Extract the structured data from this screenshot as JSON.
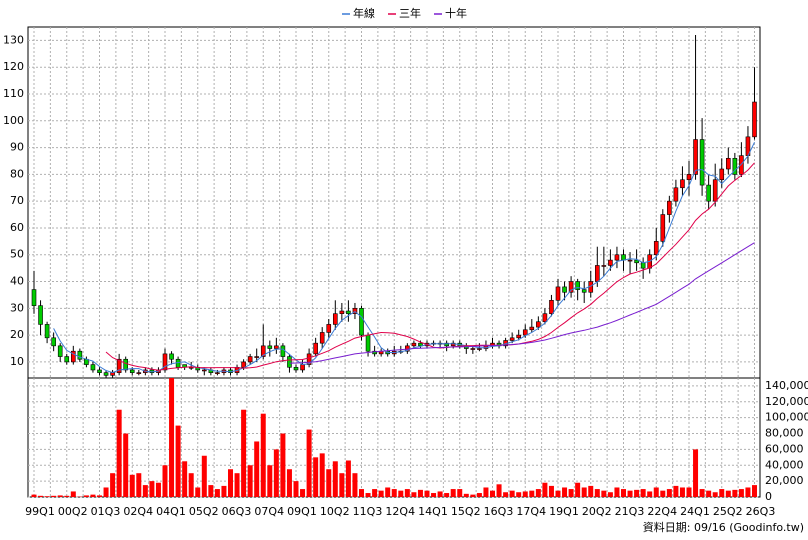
{
  "chart_data": {
    "type": "candlestick",
    "footer": "資料日期: 09/16 (Goodinfo.tw)",
    "categories": [
      "99Q1",
      null,
      null,
      null,
      null,
      "00Q2",
      null,
      null,
      null,
      null,
      "01Q3",
      null,
      null,
      null,
      null,
      "02Q4",
      null,
      null,
      null,
      null,
      "04Q1",
      null,
      null,
      null,
      null,
      "05Q2",
      null,
      null,
      null,
      null,
      "06Q3",
      null,
      null,
      null,
      null,
      "07Q4",
      null,
      null,
      null,
      null,
      "09Q1",
      null,
      null,
      null,
      null,
      "10Q2",
      null,
      null,
      null,
      null,
      "11Q3",
      null,
      null,
      null,
      null,
      "12Q4",
      null,
      null,
      null,
      null,
      "14Q1",
      null,
      null,
      null,
      null,
      "15Q2",
      null,
      null,
      null,
      null,
      "16Q3",
      null,
      null,
      null,
      null,
      "17Q4",
      null,
      null,
      null,
      null,
      "19Q1",
      null,
      null,
      null,
      null,
      "20Q2",
      null,
      null,
      null,
      null,
      "21Q3",
      null,
      null,
      null,
      null,
      "22Q4",
      null,
      null,
      null,
      null,
      "24Q1",
      null,
      null,
      null,
      null,
      "25Q2",
      null,
      null,
      null,
      null,
      "26Q3"
    ],
    "open": [
      37,
      31,
      24,
      19,
      16,
      12,
      10,
      14,
      11,
      9,
      7,
      6,
      5,
      6,
      11,
      7,
      6,
      6,
      7,
      6,
      7,
      13,
      11,
      9,
      8,
      8,
      7,
      7,
      6,
      6,
      7,
      6,
      8,
      10,
      12,
      12,
      16,
      15,
      16,
      12,
      8,
      7,
      9,
      13,
      17,
      21,
      24,
      28,
      29,
      28,
      30,
      20,
      14,
      13,
      14,
      13,
      14,
      14,
      16,
      17,
      16,
      17,
      17,
      17,
      16,
      17,
      16,
      15,
      15,
      15,
      16,
      17,
      16,
      18,
      19,
      20,
      22,
      23,
      25,
      28,
      33,
      38,
      36,
      40,
      37,
      36,
      40,
      46,
      46,
      48,
      50,
      48,
      48,
      47,
      45,
      50,
      55,
      65,
      70,
      75,
      78,
      80,
      93,
      76,
      70,
      78,
      82,
      86,
      80,
      87,
      94
    ],
    "high": [
      44,
      33,
      25,
      21,
      17,
      13,
      16,
      15,
      12,
      10,
      8,
      7,
      7,
      13,
      12,
      8,
      7,
      8,
      8,
      8,
      15,
      14,
      12,
      9,
      10,
      9,
      8,
      8,
      7,
      8,
      8,
      9,
      11,
      13,
      15,
      24,
      18,
      19,
      17,
      13,
      9,
      11,
      15,
      19,
      23,
      26,
      33,
      32,
      33,
      32,
      31,
      21,
      16,
      15,
      15,
      16,
      16,
      17,
      18,
      18,
      18,
      18,
      18,
      18,
      18,
      18,
      17,
      16,
      17,
      18,
      19,
      18,
      19,
      21,
      22,
      24,
      26,
      27,
      30,
      35,
      41,
      40,
      42,
      41,
      40,
      44,
      53,
      53,
      52,
      53,
      52,
      51,
      52,
      49,
      52,
      60,
      67,
      72,
      78,
      83,
      85,
      132,
      101,
      80,
      84,
      86,
      90,
      88,
      92,
      98,
      120
    ],
    "low": [
      28,
      20,
      17,
      14,
      10,
      9,
      9,
      10,
      8,
      6,
      5,
      4,
      4,
      5,
      6,
      5,
      5,
      5,
      5,
      5,
      6,
      9,
      7,
      7,
      7,
      6,
      5,
      5,
      5,
      5,
      5,
      5,
      7,
      9,
      10,
      11,
      12,
      13,
      10,
      6,
      6,
      6,
      8,
      12,
      15,
      19,
      22,
      25,
      25,
      26,
      18,
      12,
      12,
      12,
      12,
      12,
      13,
      13,
      15,
      15,
      15,
      16,
      15,
      14,
      15,
      15,
      13,
      13,
      14,
      14,
      15,
      15,
      15,
      17,
      18,
      19,
      21,
      22,
      24,
      27,
      31,
      33,
      34,
      33,
      32,
      34,
      38,
      42,
      44,
      45,
      44,
      43,
      44,
      41,
      43,
      48,
      53,
      62,
      68,
      72,
      72,
      78,
      72,
      67,
      68,
      75,
      80,
      78,
      79,
      84,
      93
    ],
    "close": [
      31,
      24,
      19,
      16,
      12,
      10,
      14,
      11,
      9,
      7,
      6,
      5,
      6,
      11,
      7,
      6,
      6,
      7,
      6,
      7,
      13,
      11,
      8,
      8,
      8,
      7,
      7,
      6,
      6,
      7,
      6,
      8,
      10,
      12,
      12,
      16,
      15,
      16,
      12,
      8,
      7,
      9,
      13,
      17,
      21,
      24,
      28,
      29,
      28,
      30,
      20,
      14,
      13,
      14,
      13,
      14,
      14,
      16,
      17,
      16,
      17,
      17,
      17,
      16,
      17,
      16,
      15,
      15,
      15,
      16,
      17,
      16,
      18,
      19,
      20,
      22,
      23,
      25,
      28,
      33,
      38,
      36,
      40,
      37,
      36,
      40,
      46,
      46,
      48,
      50,
      48,
      48,
      47,
      45,
      50,
      55,
      65,
      70,
      75,
      78,
      80,
      93,
      76,
      70,
      78,
      82,
      86,
      80,
      87,
      94,
      107
    ],
    "volume": [
      3000,
      1500,
      1000,
      1500,
      2000,
      1500,
      7000,
      500,
      2000,
      3000,
      2000,
      12000,
      30000,
      110000,
      80000,
      28000,
      30000,
      15000,
      20000,
      18000,
      40000,
      150000,
      90000,
      45000,
      30000,
      12000,
      52000,
      15000,
      10000,
      14000,
      35000,
      30000,
      110000,
      40000,
      70000,
      105000,
      40000,
      60000,
      80000,
      35000,
      20000,
      10000,
      85000,
      50000,
      55000,
      35000,
      45000,
      30000,
      46000,
      30000,
      10000,
      5000,
      10000,
      8000,
      12000,
      10000,
      8000,
      10000,
      6000,
      9000,
      8000,
      5000,
      7000,
      5000,
      10000,
      10000,
      4000,
      3000,
      5000,
      12000,
      8000,
      16000,
      6000,
      8000,
      6000,
      7000,
      8000,
      10000,
      18000,
      14000,
      8000,
      12000,
      10000,
      18000,
      12000,
      14000,
      10000,
      8000,
      6000,
      12000,
      10000,
      8000,
      9000,
      10000,
      7000,
      12000,
      8000,
      10000,
      14000,
      12000,
      12000,
      60000,
      10000,
      8000,
      6000,
      10000,
      8000,
      9000,
      10000,
      12000,
      15000
    ],
    "up_color": "#ff0000",
    "down_color": "#00cc00",
    "volume_color": "#ff0000",
    "series": [
      {
        "name": "年線",
        "color": "#3a7bd5",
        "values": [
          null,
          null,
          null,
          22.5,
          17.8,
          14.3,
          13,
          11.8,
          11,
          10.3,
          8.3,
          6.8,
          6,
          7,
          7.3,
          7.5,
          7.5,
          6.5,
          6.3,
          6.5,
          8.3,
          9.3,
          9.8,
          10,
          8.8,
          7.8,
          7.5,
          7,
          6.5,
          6.5,
          6.3,
          6.8,
          7.8,
          9,
          10.5,
          12.5,
          13.8,
          14.8,
          14.8,
          12.8,
          10.8,
          9,
          9.3,
          11.5,
          15,
          18.8,
          22.5,
          25.5,
          27.3,
          28.8,
          26.8,
          23,
          19.3,
          15.3,
          13.5,
          13.5,
          13.8,
          14.3,
          15.3,
          15.8,
          16.5,
          16.8,
          16.8,
          16.8,
          16.8,
          16.5,
          16,
          15.8,
          15.3,
          15.3,
          15.8,
          16,
          16.8,
          17.5,
          18.3,
          19.8,
          21,
          22.5,
          24.5,
          27.3,
          31,
          33.8,
          36.8,
          37.8,
          37.3,
          38.3,
          39.8,
          42,
          45,
          47.5,
          48,
          48.5,
          48.3,
          47,
          47.5,
          49.3,
          53.8,
          60,
          66.3,
          72,
          75.8,
          81.5,
          81.8,
          79.8,
          79.3,
          76.5,
          79,
          81.5,
          83.8,
          86.8,
          92
        ]
      },
      {
        "name": "三年",
        "color": "#e0004a",
        "values": [
          null,
          null,
          null,
          null,
          null,
          null,
          null,
          null,
          null,
          null,
          null,
          13.7,
          11.6,
          10.5,
          9.5,
          8.7,
          8.2,
          7.9,
          7.3,
          6.9,
          7.3,
          7.6,
          7.8,
          8,
          8.2,
          7.9,
          7.9,
          7.8,
          7.9,
          7.9,
          7.9,
          7.9,
          7.7,
          7.8,
          8.1,
          8.8,
          9.4,
          10.1,
          10.5,
          10.7,
          10.8,
          10.9,
          11.5,
          12.3,
          13.2,
          14.2,
          15.5,
          16.6,
          17.7,
          18.9,
          19.5,
          20,
          20.5,
          21,
          20.9,
          20.7,
          20.1,
          19.5,
          18.5,
          17.4,
          16.5,
          15.5,
          15.2,
          15.4,
          15.7,
          15.9,
          16,
          16.1,
          16.2,
          16.2,
          16.2,
          16.2,
          16.3,
          16.4,
          16.7,
          17.2,
          17.7,
          18.4,
          19.5,
          21,
          22.9,
          24.6,
          26.5,
          28.3,
          29.8,
          31.5,
          33.7,
          35.7,
          37.8,
          39.9,
          41.5,
          42.8,
          43.5,
          44.3,
          45.1,
          46.6,
          49,
          51.5,
          53.9,
          56.6,
          59.3,
          62.8,
          65.2,
          67,
          69.6,
          72.7,
          75.7,
          77.8,
          79.6,
          81.6,
          84.3
        ]
      },
      {
        "name": "十年",
        "color": "#7a1fd0",
        "values": [
          null,
          null,
          null,
          null,
          null,
          null,
          null,
          null,
          null,
          null,
          null,
          null,
          null,
          null,
          null,
          null,
          null,
          null,
          null,
          null,
          null,
          null,
          null,
          null,
          null,
          null,
          null,
          null,
          null,
          null,
          null,
          null,
          null,
          null,
          null,
          null,
          null,
          null,
          null,
          9.5,
          9.6,
          9.7,
          9.9,
          10.1,
          10.5,
          11,
          11.5,
          12,
          12.5,
          13,
          13.3,
          13.5,
          13.8,
          14,
          14.2,
          14.4,
          14.6,
          14.8,
          15,
          15.1,
          15.2,
          15.3,
          15.4,
          15.5,
          15.6,
          15.6,
          15.7,
          15.8,
          15.9,
          16,
          16.1,
          16.2,
          16.3,
          16.5,
          16.7,
          17,
          17.3,
          17.7,
          18.2,
          18.8,
          19.5,
          20.2,
          20.8,
          21.3,
          21.8,
          22.4,
          23,
          23.8,
          24.6,
          25.5,
          26.5,
          27.5,
          28.5,
          29.5,
          30.5,
          31.5,
          33,
          34.5,
          36,
          37.5,
          39,
          41,
          42.5,
          44,
          45.5,
          47,
          48.5,
          50,
          51.5,
          53,
          54.5
        ]
      }
    ],
    "ylim": [
      4,
      135
    ],
    "yticks": [
      10,
      20,
      30,
      40,
      50,
      60,
      70,
      80,
      90,
      100,
      110,
      120,
      130
    ],
    "y2lim": [
      0,
      150000
    ],
    "y2ticks": [
      0,
      {
        "value": 20000,
        "label": "20,000"
      },
      {
        "value": 40000,
        "label": "40,000"
      },
      {
        "value": 60000,
        "label": "60,000"
      },
      {
        "value": 80000,
        "label": "80,000"
      },
      {
        "value": 100000,
        "label": "100,000"
      },
      {
        "value": 120000,
        "label": "120,000"
      },
      {
        "value": 140000,
        "label": "140,000"
      }
    ],
    "grid": true
  }
}
